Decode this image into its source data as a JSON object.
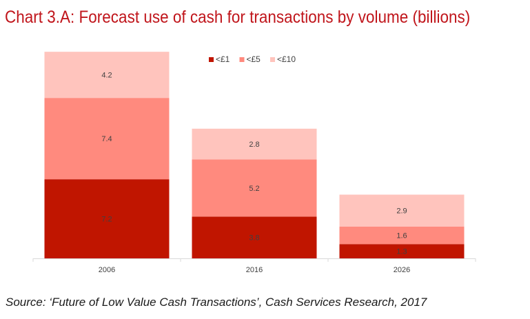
{
  "title": "Chart 3.A: Forecast use of cash for transactions by volume (billions)",
  "source": "Source: ‘Future of Low Value Cash Transactions’, Cash Services Research, 2017",
  "colors": {
    "title": "#c0151b",
    "axis": "#d9d9d9"
  },
  "chart_data": {
    "type": "bar",
    "stacked": true,
    "categories": [
      "2006",
      "2016",
      "2026"
    ],
    "series": [
      {
        "name": "<£1",
        "color": "#c01500",
        "values": [
          7.2,
          3.8,
          1.3
        ],
        "labels": [
          "7.2",
          "3.8",
          "1.3"
        ]
      },
      {
        "name": "<£5",
        "color": "#ff8a7e",
        "values": [
          7.4,
          5.2,
          1.6
        ],
        "labels": [
          "7.4",
          "5.2",
          "1.6"
        ]
      },
      {
        "name": "<£10",
        "color": "#ffc4bd",
        "values": [
          4.2,
          2.8,
          2.9
        ],
        "labels": [
          "4.2",
          "2.8",
          "2.9"
        ]
      }
    ],
    "legend_position": "top-right",
    "grid": false
  }
}
